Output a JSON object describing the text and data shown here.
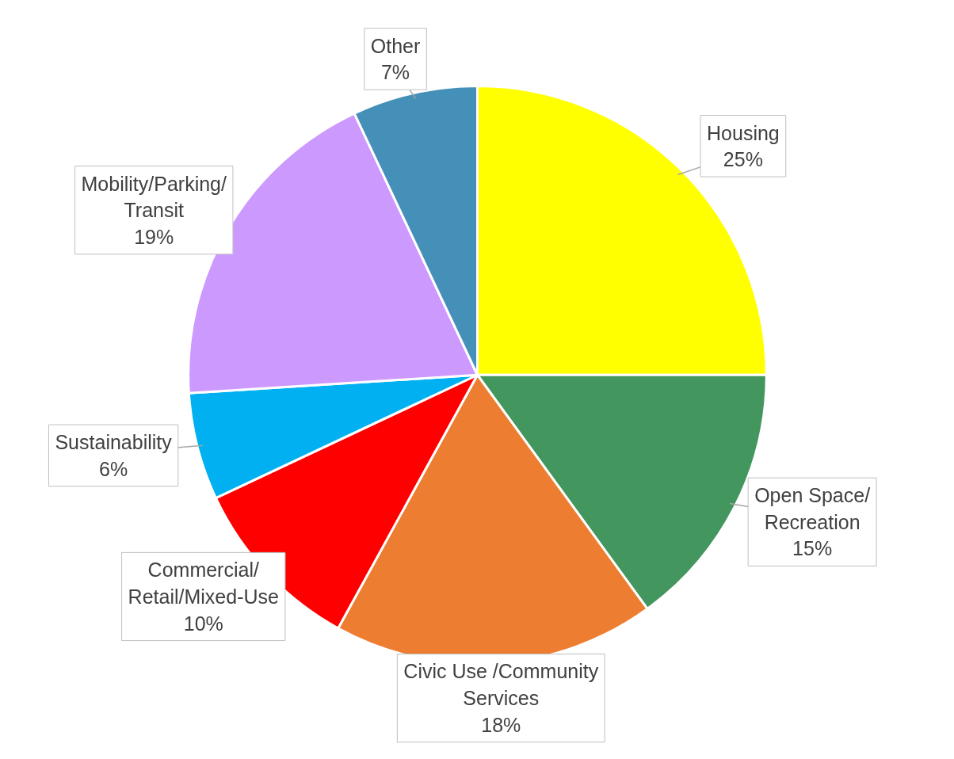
{
  "chart_data": {
    "type": "pie",
    "categories": [
      "Housing",
      "Open Space/\nRecreation",
      "Civic Use /Community\nServices",
      "Commercial/\nRetail/Mixed-Use",
      "Sustainability",
      "Mobility/Parking/\nTransit",
      "Other"
    ],
    "values": [
      25,
      15,
      18,
      10,
      6,
      19,
      7
    ],
    "colors": [
      "#ffff00",
      "#43965e",
      "#ed7d31",
      "#ff0000",
      "#00b0f0",
      "#cc99ff",
      "#4590b8"
    ],
    "value_labels": [
      "25%",
      "15%",
      "18%",
      "10%",
      "6%",
      "19%",
      "7%"
    ]
  }
}
